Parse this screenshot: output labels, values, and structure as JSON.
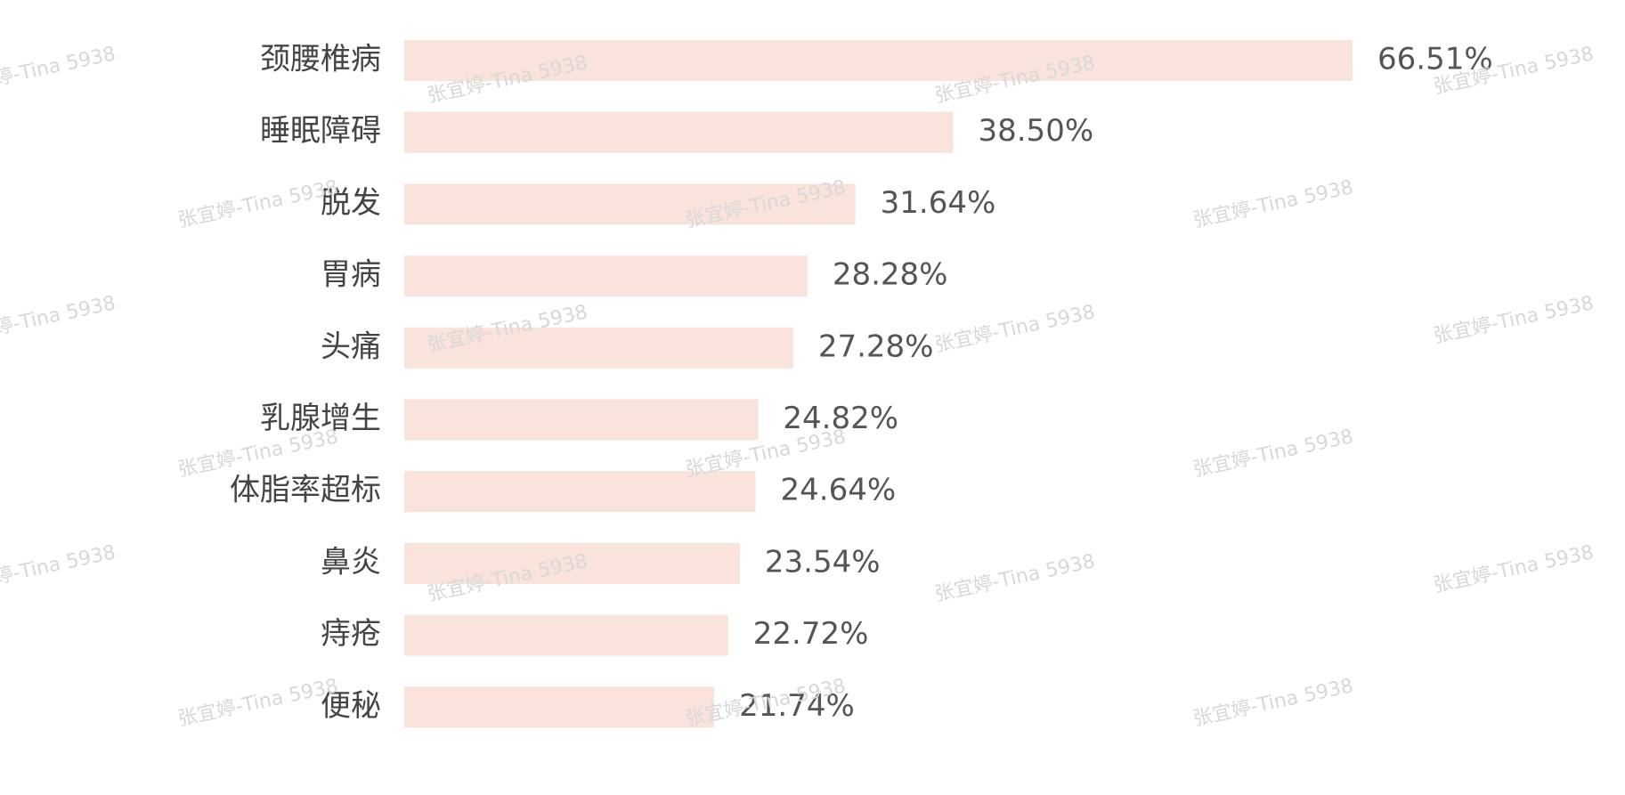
{
  "chart_data": {
    "type": "bar",
    "orientation": "horizontal",
    "categories": [
      "颈腰椎病",
      "睡眠障碍",
      "脱发",
      "胃病",
      "头痛",
      "乳腺增生",
      "体脂率超标",
      "鼻炎",
      "痔疮",
      "便秘"
    ],
    "values": [
      66.51,
      38.5,
      31.64,
      28.28,
      27.28,
      24.82,
      24.64,
      23.54,
      22.72,
      21.74
    ],
    "value_labels": [
      "66.51%",
      "38.50%",
      "31.64%",
      "28.28%",
      "27.28%",
      "24.82%",
      "24.64%",
      "23.54%",
      "22.72%",
      "21.74%"
    ],
    "color": "#f9e3db"
  },
  "watermark": "张宜婷-Tina 5938"
}
